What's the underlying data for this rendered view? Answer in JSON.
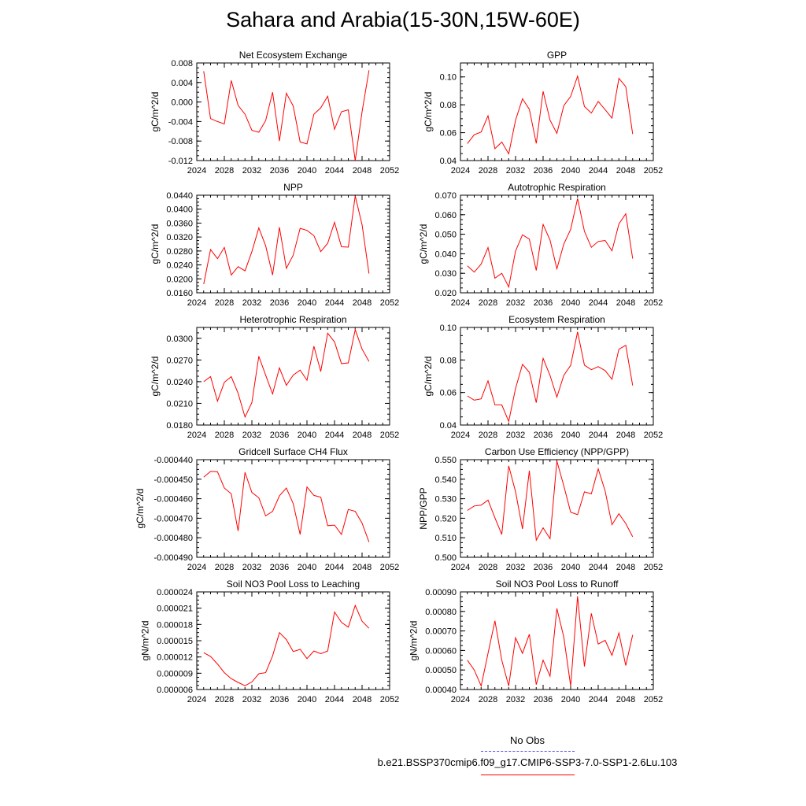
{
  "title": "Sahara and Arabia(15-30N,15W-60E)",
  "colors": {
    "series": "#ff0000",
    "obs": "#5050ff",
    "axis": "#000000"
  },
  "legend": {
    "obs_label": "No Obs",
    "run_label": "b.e21.BSSP370cmip6.f09_g17.CMIP6-SSP3-7.0-SSP1-2.6Lu.103"
  },
  "chart_data": [
    {
      "type": "line",
      "title": "Net Ecosystem Exchange",
      "ylabel": "gC/m^2/d",
      "xlim": [
        2024,
        2052
      ],
      "ylim": [
        -0.012,
        0.008
      ],
      "xticks": [
        "2024",
        "2028",
        "2032",
        "2036",
        "2040",
        "2044",
        "2048",
        "2052"
      ],
      "yticks": [
        "-0.012",
        "-0.008",
        "-0.004",
        "0.000",
        "0.004",
        "0.008"
      ],
      "x": [
        2025,
        2026,
        2027,
        2028,
        2029,
        2030,
        2031,
        2032,
        2033,
        2034,
        2035,
        2036,
        2037,
        2038,
        2039,
        2040,
        2041,
        2042,
        2043,
        2044,
        2045,
        2046,
        2047,
        2048,
        2049
      ],
      "values": [
        0.0063,
        -0.0034,
        -0.004,
        -0.0045,
        0.0044,
        -0.0007,
        -0.0025,
        -0.0058,
        -0.0062,
        -0.0038,
        0.002,
        -0.008,
        0.0018,
        -0.0008,
        -0.0082,
        -0.0086,
        -0.0025,
        -0.0012,
        0.0012,
        -0.0056,
        -0.002,
        -0.0016,
        -0.012,
        -0.002,
        0.0065
      ]
    },
    {
      "type": "line",
      "title": "GPP",
      "ylabel": "gC/m^2/d",
      "xlim": [
        2024,
        2052
      ],
      "ylim": [
        0.04,
        0.11
      ],
      "xticks": [
        "2024",
        "2028",
        "2032",
        "2036",
        "2040",
        "2044",
        "2048",
        "2052"
      ],
      "yticks": [
        "0.04",
        "0.06",
        "0.08",
        "0.10"
      ],
      "x": [
        2025,
        2026,
        2027,
        2028,
        2029,
        2030,
        2031,
        2032,
        2033,
        2034,
        2035,
        2036,
        2037,
        2038,
        2039,
        2040,
        2041,
        2042,
        2043,
        2044,
        2045,
        2046,
        2047,
        2048,
        2049
      ],
      "values": [
        0.0522,
        0.0585,
        0.0605,
        0.0722,
        0.0485,
        0.0533,
        0.0448,
        0.069,
        0.0843,
        0.0768,
        0.0523,
        0.0896,
        0.069,
        0.0595,
        0.0794,
        0.086,
        0.1006,
        0.0787,
        0.0741,
        0.0824,
        0.0765,
        0.0704,
        0.099,
        0.093,
        0.059
      ]
    },
    {
      "type": "line",
      "title": "NPP",
      "ylabel": "gC/m^2/d",
      "xlim": [
        2024,
        2052
      ],
      "ylim": [
        0.016,
        0.044
      ],
      "xticks": [
        "2024",
        "2028",
        "2032",
        "2036",
        "2040",
        "2044",
        "2048",
        "2052"
      ],
      "yticks": [
        "0.0160",
        "0.0200",
        "0.0240",
        "0.0280",
        "0.0320",
        "0.0360",
        "0.0400",
        "0.0440"
      ],
      "x": [
        2025,
        2026,
        2027,
        2028,
        2029,
        2030,
        2031,
        2032,
        2033,
        2034,
        2035,
        2036,
        2037,
        2038,
        2039,
        2040,
        2041,
        2042,
        2043,
        2044,
        2045,
        2046,
        2047,
        2048,
        2049
      ],
      "values": [
        0.0185,
        0.0284,
        0.0258,
        0.029,
        0.0211,
        0.0235,
        0.0223,
        0.0278,
        0.0346,
        0.0295,
        0.0211,
        0.0348,
        0.023,
        0.0268,
        0.0345,
        0.0339,
        0.0324,
        0.0278,
        0.0302,
        0.0362,
        0.0292,
        0.0291,
        0.0438,
        0.0355,
        0.0215
      ]
    },
    {
      "type": "line",
      "title": "Autotrophic Respiration",
      "ylabel": "gC/m^2/d",
      "xlim": [
        2024,
        2052
      ],
      "ylim": [
        0.02,
        0.07
      ],
      "xticks": [
        "2024",
        "2028",
        "2032",
        "2036",
        "2040",
        "2044",
        "2048",
        "2052"
      ],
      "yticks": [
        "0.020",
        "0.030",
        "0.040",
        "0.050",
        "0.060",
        "0.070"
      ],
      "x": [
        2025,
        2026,
        2027,
        2028,
        2029,
        2030,
        2031,
        2032,
        2033,
        2034,
        2035,
        2036,
        2037,
        2038,
        2039,
        2040,
        2041,
        2042,
        2043,
        2044,
        2045,
        2046,
        2047,
        2048,
        2049
      ],
      "values": [
        0.0338,
        0.0306,
        0.0347,
        0.0432,
        0.0275,
        0.03,
        0.023,
        0.0414,
        0.0497,
        0.0475,
        0.0315,
        0.055,
        0.047,
        0.0323,
        0.045,
        0.0525,
        0.0683,
        0.0515,
        0.0433,
        0.0463,
        0.0468,
        0.0415,
        0.0553,
        0.0605,
        0.0375
      ]
    },
    {
      "type": "line",
      "title": "Heterotrophic Respiration",
      "ylabel": "gC/m^2/d",
      "xlim": [
        2024,
        2052
      ],
      "ylim": [
        0.018,
        0.0315
      ],
      "xticks": [
        "2024",
        "2028",
        "2032",
        "2036",
        "2040",
        "2044",
        "2048",
        "2052"
      ],
      "yticks": [
        "0.0180",
        "0.0210",
        "0.0240",
        "0.0270",
        "0.0300"
      ],
      "x": [
        2025,
        2026,
        2027,
        2028,
        2029,
        2030,
        2031,
        2032,
        2033,
        2034,
        2035,
        2036,
        2037,
        2038,
        2039,
        2040,
        2041,
        2042,
        2043,
        2044,
        2045,
        2046,
        2047,
        2048,
        2049
      ],
      "values": [
        0.024,
        0.0247,
        0.0213,
        0.0239,
        0.0247,
        0.0224,
        0.0191,
        0.0211,
        0.0275,
        0.0249,
        0.0223,
        0.0259,
        0.0235,
        0.0249,
        0.0256,
        0.0242,
        0.0289,
        0.0254,
        0.0307,
        0.0295,
        0.0265,
        0.0266,
        0.0312,
        0.0285,
        0.0268
      ]
    },
    {
      "type": "line",
      "title": "Ecosystem Respiration",
      "ylabel": "gC/m^2/d",
      "xlim": [
        2024,
        2052
      ],
      "ylim": [
        0.04,
        0.1
      ],
      "xticks": [
        "2024",
        "2028",
        "2032",
        "2036",
        "2040",
        "2044",
        "2048",
        "2052"
      ],
      "yticks": [
        "0.04",
        "0.06",
        "0.08",
        "0.10"
      ],
      "x": [
        2025,
        2026,
        2027,
        2028,
        2029,
        2030,
        2031,
        2032,
        2033,
        2034,
        2035,
        2036,
        2037,
        2038,
        2039,
        2040,
        2041,
        2042,
        2043,
        2044,
        2045,
        2046,
        2047,
        2048,
        2049
      ],
      "values": [
        0.0579,
        0.0553,
        0.0561,
        0.0672,
        0.0524,
        0.0524,
        0.0422,
        0.0625,
        0.0773,
        0.0724,
        0.0538,
        0.081,
        0.0705,
        0.0572,
        0.0706,
        0.0767,
        0.0973,
        0.0768,
        0.074,
        0.0759,
        0.0735,
        0.0681,
        0.0866,
        0.089,
        0.0643
      ]
    },
    {
      "type": "line",
      "title": "Gridcell Surface CH4 Flux",
      "ylabel": "gC/m^2/d",
      "xlim": [
        2024,
        2052
      ],
      "ylim": [
        -0.00049,
        -0.00044
      ],
      "xticks": [
        "2024",
        "2028",
        "2032",
        "2036",
        "2040",
        "2044",
        "2048",
        "2052"
      ],
      "yticks": [
        "-0.000490",
        "-0.000480",
        "-0.000470",
        "-0.000460",
        "-0.000450",
        "-0.000440"
      ],
      "x": [
        2025,
        2026,
        2027,
        2028,
        2029,
        2030,
        2031,
        2032,
        2033,
        2034,
        2035,
        2036,
        2037,
        2038,
        2039,
        2040,
        2041,
        2042,
        2043,
        2044,
        2045,
        2046,
        2047,
        2048,
        2049
      ],
      "values": [
        -0.000449,
        -0.000446,
        -0.0004462,
        -0.0004545,
        -0.0004575,
        -0.0004765,
        -0.0004465,
        -0.0004568,
        -0.0004595,
        -0.0004688,
        -0.0004665,
        -0.0004585,
        -0.0004545,
        -0.0004625,
        -0.0004783,
        -0.000454,
        -0.0004583,
        -0.0004592,
        -0.0004738,
        -0.0004735,
        -0.0004783,
        -0.0004655,
        -0.0004665,
        -0.0004725,
        -0.0004822
      ]
    },
    {
      "type": "line",
      "title": "Carbon Use Efficiency (NPP/GPP)",
      "ylabel": "NPP/GPP",
      "xlim": [
        2024,
        2052
      ],
      "ylim": [
        0.5,
        0.55
      ],
      "xticks": [
        "2024",
        "2028",
        "2032",
        "2036",
        "2040",
        "2044",
        "2048",
        "2052"
      ],
      "yticks": [
        "0.500",
        "0.510",
        "0.520",
        "0.530",
        "0.540",
        "0.550"
      ],
      "x": [
        2025,
        2026,
        2027,
        2028,
        2029,
        2030,
        2031,
        2032,
        2033,
        2034,
        2035,
        2036,
        2037,
        2038,
        2039,
        2040,
        2041,
        2042,
        2043,
        2044,
        2045,
        2046,
        2047,
        2048,
        2049
      ],
      "values": [
        0.524,
        0.5263,
        0.5267,
        0.5293,
        0.5202,
        0.5117,
        0.5468,
        0.5336,
        0.5145,
        0.5443,
        0.5088,
        0.5151,
        0.5095,
        0.5493,
        0.5366,
        0.5231,
        0.5218,
        0.5335,
        0.5325,
        0.5453,
        0.534,
        0.5167,
        0.5223,
        0.5173,
        0.5105
      ]
    },
    {
      "type": "line",
      "title": "Soil NO3 Pool Loss to Leaching",
      "ylabel": "gN/m^2/d",
      "xlim": [
        2024,
        2052
      ],
      "ylim": [
        6e-06,
        2.4e-05
      ],
      "xticks": [
        "2024",
        "2028",
        "2032",
        "2036",
        "2040",
        "2044",
        "2048",
        "2052"
      ],
      "yticks": [
        "0.000006",
        "0.000009",
        "0.000012",
        "0.000015",
        "0.000018",
        "0.000021",
        "0.000024"
      ],
      "x": [
        2025,
        2026,
        2027,
        2028,
        2029,
        2030,
        2031,
        2032,
        2033,
        2034,
        2035,
        2036,
        2037,
        2038,
        2039,
        2040,
        2041,
        2042,
        2043,
        2044,
        2045,
        2046,
        2047,
        2048,
        2049
      ],
      "values": [
        1.28e-05,
        1.21e-05,
        1.07e-05,
        9.1e-06,
        8e-06,
        7.3e-06,
        6.7e-06,
        7.4e-06,
        8.9e-06,
        9.1e-06,
        1.22e-05,
        1.65e-05,
        1.52e-05,
        1.3e-05,
        1.34e-05,
        1.17e-05,
        1.31e-05,
        1.26e-05,
        1.31e-05,
        2.03e-05,
        1.84e-05,
        1.75e-05,
        2.15e-05,
        1.86e-05,
        1.73e-05
      ]
    },
    {
      "type": "line",
      "title": "Soil NO3 Pool Loss to Runoff",
      "ylabel": "gN/m^2/d",
      "xlim": [
        2024,
        2052
      ],
      "ylim": [
        0.0004,
        0.0009
      ],
      "xticks": [
        "2024",
        "2028",
        "2032",
        "2036",
        "2040",
        "2044",
        "2048",
        "2052"
      ],
      "yticks": [
        "0.00040",
        "0.00050",
        "0.00060",
        "0.00070",
        "0.00080",
        "0.00090"
      ],
      "x": [
        2025,
        2026,
        2027,
        2028,
        2029,
        2030,
        2031,
        2032,
        2033,
        2034,
        2035,
        2036,
        2037,
        2038,
        2039,
        2040,
        2041,
        2042,
        2043,
        2044,
        2045,
        2046,
        2047,
        2048,
        2049
      ],
      "values": [
        0.00055,
        0.0005,
        0.000418,
        0.000585,
        0.000752,
        0.00055,
        0.000418,
        0.000665,
        0.000585,
        0.000683,
        0.000425,
        0.00055,
        0.000468,
        0.000815,
        0.000668,
        0.000418,
        0.000878,
        0.000518,
        0.00079,
        0.000633,
        0.000652,
        0.000575,
        0.00069,
        0.000523,
        0.00068
      ]
    }
  ]
}
